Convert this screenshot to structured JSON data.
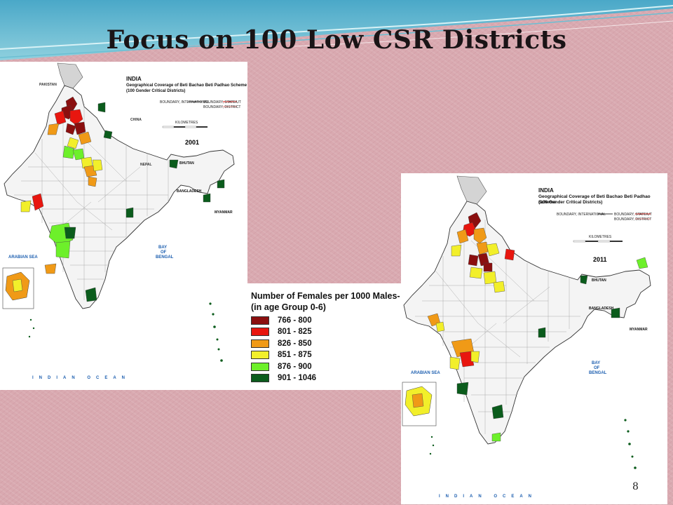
{
  "slide": {
    "title": "Focus on 100 Low CSR Districts",
    "page_number": "8"
  },
  "map_header": {
    "country": "INDIA",
    "subtitle_line1": "Geographical Coverage of Beti Bachao Beti Padhao Scheme",
    "subtitle_line2": "(100 Gender Critical Districts)",
    "boundary_international": "BOUNDARY, INTERNATIONAL",
    "boundary_state": "BOUNDARY, STATE/UT",
    "boundary_district": "BOUNDARY, DISTRICT",
    "scale_label": "KILOMETRES"
  },
  "map_labels": {
    "arabian_sea": "ARABIAN SEA",
    "bay_of_bengal_1": "BAY",
    "bay_of_bengal_2": "OF",
    "bay_of_bengal_3": "BENGAL",
    "indian_ocean": "INDIAN OCEAN",
    "bhutan": "BHUTAN",
    "bangladesh": "BANGLADESH",
    "myanmar": "MYANMAR",
    "nepal": "NEPAL",
    "pakistan": "PAKISTAN",
    "china": "CHINA"
  },
  "maps": [
    {
      "year": "2001"
    },
    {
      "year": "2011"
    }
  ],
  "legend": {
    "title_line1": "Number of Females per 1000 Males-",
    "title_line2": "(in age Group 0-6)",
    "items": [
      {
        "label": "766 - 800",
        "color": "#8b0f0f"
      },
      {
        "label": "801 - 825",
        "color": "#e8160f"
      },
      {
        "label": "826 - 850",
        "color": "#f09a17"
      },
      {
        "label": "851 - 875",
        "color": "#f2ef2a"
      },
      {
        "label": "876 - 900",
        "color": "#6df02a"
      },
      {
        "label": "901 - 1046",
        "color": "#0b5c1c"
      }
    ]
  }
}
